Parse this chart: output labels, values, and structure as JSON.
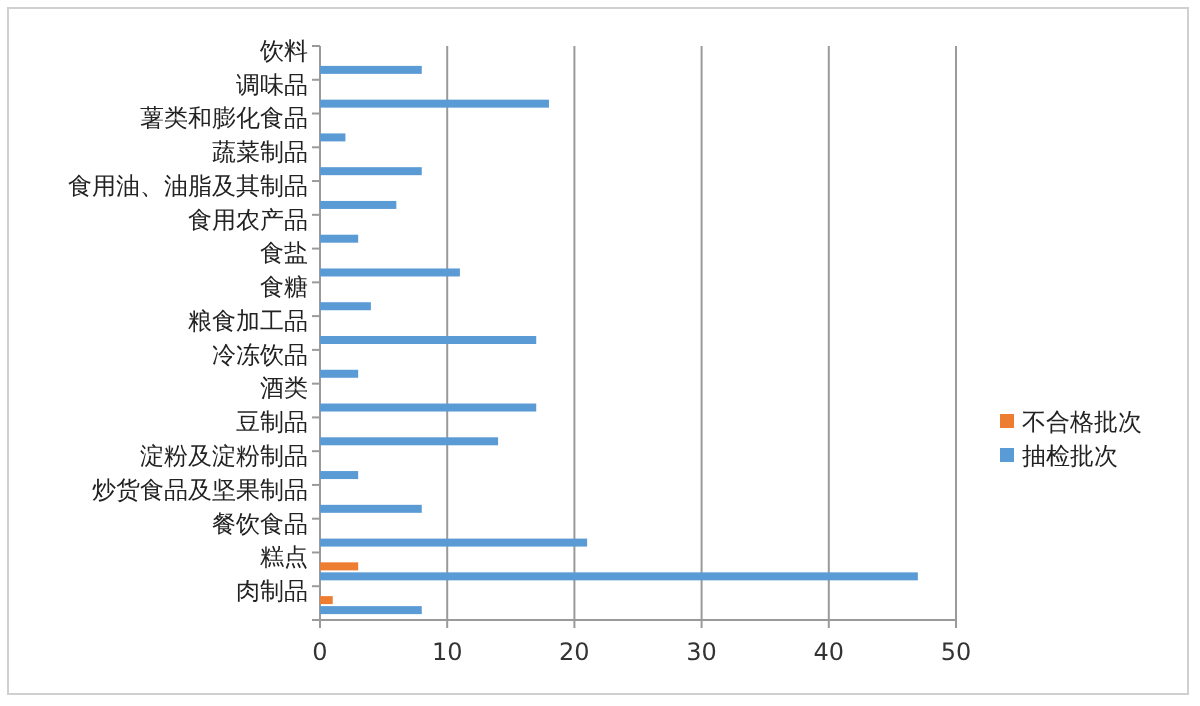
{
  "chart_data": {
    "type": "bar",
    "orientation": "horizontal",
    "categories": [
      "饮料",
      "调味品",
      "薯类和膨化食品",
      "蔬菜制品",
      "食用油、油脂及其制品",
      "食用农产品",
      "食盐",
      "食糖",
      "粮食加工品",
      "冷冻饮品",
      "酒类",
      "豆制品",
      "淀粉及淀粉制品",
      "炒货食品及坚果制品",
      "餐饮食品",
      "糕点",
      "肉制品"
    ],
    "series": [
      {
        "name": "不合格批次",
        "color": "#ed7d31",
        "values": [
          0,
          0,
          0,
          0,
          0,
          0,
          0,
          0,
          0,
          0,
          0,
          0,
          0,
          0,
          0,
          3,
          1
        ]
      },
      {
        "name": "抽检批次",
        "color": "#5b9bd5",
        "values": [
          8,
          18,
          2,
          8,
          6,
          3,
          11,
          4,
          17,
          3,
          17,
          14,
          3,
          8,
          21,
          47,
          8
        ]
      }
    ],
    "xlim": [
      0,
      50
    ],
    "xticks": [
      0,
      10,
      20,
      30,
      40,
      50
    ],
    "grid": "x",
    "legend": "right"
  }
}
